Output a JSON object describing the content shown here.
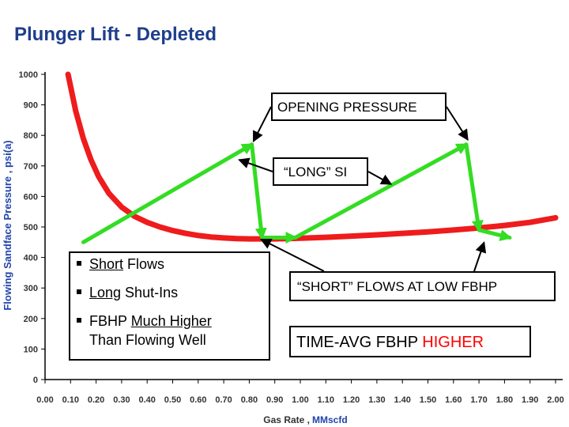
{
  "title": "Plunger Lift - Depleted",
  "colors": {
    "title": "#1f3e8c",
    "ipr_curve": "#ee1c1c",
    "cycle": "#33dd22",
    "highlight": "#ff0000",
    "axis_label_blue": "#2244aa"
  },
  "annotations": {
    "opening_pressure": "OPENING PRESSURE",
    "long_si": "“LONG” SI",
    "short_flows": "“SHORT” FLOWS AT LOW FBHP",
    "time_avg_prefix": "TIME-AVG FBHP",
    "time_avg_highlight": "HIGHER"
  },
  "bullets": {
    "b1_u": "Short",
    "b1_rest": " Flows",
    "b2_u": "Long",
    "b2_rest": " Shut-Ins",
    "b3_a": "FBHP ",
    "b3_u": "Much Higher",
    "b3_line2": "Than Flowing Well"
  },
  "chart_data": {
    "type": "line",
    "xlabel_prefix": "Gas Rate ,",
    "xlabel_unit": "MMscfd",
    "ylabel": "Flowing Sandface Pressure , psi(a)",
    "xlim": [
      0,
      2.0
    ],
    "ylim": [
      0,
      1000
    ],
    "x_ticks": [
      "0.00",
      "0.10",
      "0.20",
      "0.30",
      "0.40",
      "0.50",
      "0.60",
      "0.70",
      "0.80",
      "0.90",
      "1.00",
      "1.10",
      "1.20",
      "1.30",
      "1.40",
      "1.50",
      "1.60",
      "1.70",
      "1.80",
      "1.90",
      "2.00"
    ],
    "y_ticks": [
      "0",
      "100",
      "200",
      "300",
      "400",
      "500",
      "600",
      "700",
      "800",
      "900",
      "1000"
    ],
    "grid": false,
    "series": [
      {
        "role": "outflow-curve",
        "x": [
          0.09,
          0.12,
          0.15,
          0.18,
          0.21,
          0.25,
          0.3,
          0.35,
          0.4,
          0.45,
          0.5,
          0.55,
          0.6,
          0.65,
          0.7,
          0.75,
          0.8,
          0.85,
          0.9,
          1.0,
          1.1,
          1.2,
          1.3,
          1.4,
          1.5,
          1.6,
          1.7,
          1.8,
          1.9,
          2.0
        ],
        "y": [
          1000,
          880,
          790,
          720,
          665,
          610,
          565,
          535,
          515,
          500,
          488,
          479,
          472,
          467,
          464,
          462,
          461,
          461,
          461,
          463,
          466,
          470,
          474,
          479,
          484,
          490,
          497,
          505,
          515,
          530
        ]
      },
      {
        "role": "plunger-cycle-1",
        "x": [
          0.15,
          0.81,
          0.85,
          0.98
        ],
        "y": [
          450,
          770,
          465,
          465
        ]
      },
      {
        "role": "plunger-cycle-2",
        "x": [
          0.98,
          1.65,
          1.7,
          1.82
        ],
        "y": [
          465,
          770,
          490,
          465
        ]
      }
    ]
  }
}
